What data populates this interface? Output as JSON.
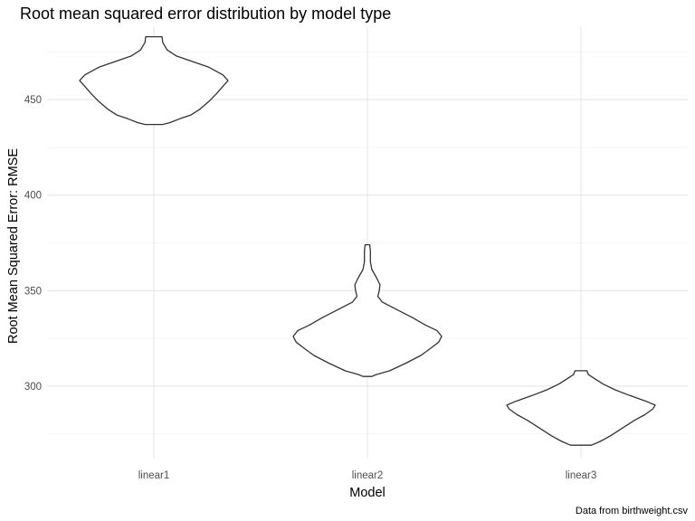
{
  "chart_data": {
    "type": "violin",
    "title": "Root mean squared error distribution by model type",
    "xlabel": "Model",
    "ylabel": "Root Mean Squared Error: RMSE",
    "caption": "Data from birthweight.csv",
    "categories": [
      "linear1",
      "linear2",
      "linear3"
    ],
    "y_ticks": [
      300,
      350,
      400,
      450
    ],
    "ylim": [
      262,
      488
    ],
    "grid": true,
    "series": [
      {
        "category": "linear1",
        "min": 437,
        "max": 483,
        "density": [
          [
            437,
            0.12
          ],
          [
            438,
            0.22
          ],
          [
            440,
            0.35
          ],
          [
            442,
            0.5
          ],
          [
            445,
            0.62
          ],
          [
            449,
            0.74
          ],
          [
            453,
            0.84
          ],
          [
            457,
            0.93
          ],
          [
            460,
            1.0
          ],
          [
            463,
            0.93
          ],
          [
            467,
            0.74
          ],
          [
            470,
            0.52
          ],
          [
            473,
            0.3
          ],
          [
            476,
            0.18
          ],
          [
            480,
            0.12
          ],
          [
            483,
            0.11
          ]
        ]
      },
      {
        "category": "linear2",
        "min": 305,
        "max": 374,
        "density": [
          [
            305,
            0.06
          ],
          [
            306,
            0.12
          ],
          [
            308,
            0.3
          ],
          [
            312,
            0.52
          ],
          [
            316,
            0.72
          ],
          [
            320,
            0.86
          ],
          [
            323,
            0.96
          ],
          [
            326,
            1.0
          ],
          [
            329,
            0.94
          ],
          [
            332,
            0.78
          ],
          [
            336,
            0.6
          ],
          [
            340,
            0.4
          ],
          [
            344,
            0.2
          ],
          [
            347,
            0.14
          ],
          [
            350,
            0.16
          ],
          [
            353,
            0.17
          ],
          [
            357,
            0.12
          ],
          [
            361,
            0.06
          ],
          [
            365,
            0.04
          ],
          [
            368,
            0.04
          ],
          [
            371,
            0.04
          ],
          [
            374,
            0.03
          ]
        ]
      },
      {
        "category": "linear3",
        "min": 269,
        "max": 308,
        "density": [
          [
            269,
            0.14
          ],
          [
            271,
            0.26
          ],
          [
            274,
            0.4
          ],
          [
            278,
            0.56
          ],
          [
            282,
            0.72
          ],
          [
            285,
            0.86
          ],
          [
            288,
            0.97
          ],
          [
            290,
            1.0
          ],
          [
            292,
            0.88
          ],
          [
            295,
            0.66
          ],
          [
            298,
            0.46
          ],
          [
            301,
            0.3
          ],
          [
            304,
            0.18
          ],
          [
            306,
            0.1
          ],
          [
            308,
            0.08
          ]
        ]
      }
    ]
  }
}
